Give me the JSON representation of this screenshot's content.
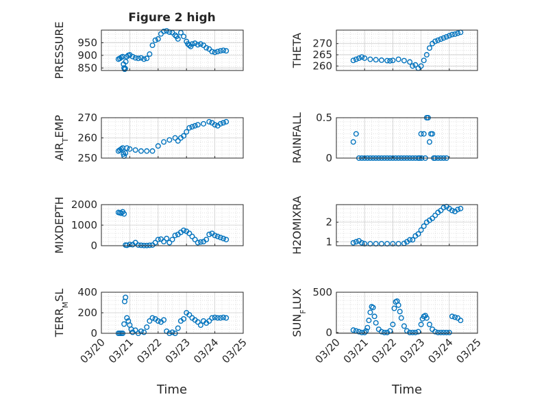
{
  "chart_data": {
    "type": "scatter",
    "title": "Figure 2 high",
    "xlabel": "Time",
    "x_ticks": [
      "03/20",
      "03/21",
      "03/22",
      "03/23",
      "03/24",
      "03/25"
    ],
    "x_range_days": [
      0,
      5
    ],
    "marker": "open-circle",
    "marker_color": "#0072bd",
    "grid": "major+minor",
    "panels": [
      {
        "ylabel": "PRESSURE",
        "ylim": [
          840,
          1000
        ],
        "yticks": [
          850,
          900,
          950
        ],
        "x": [
          0.6,
          0.65,
          0.7,
          0.75,
          0.78,
          0.8,
          0.82,
          0.84,
          0.86,
          0.9,
          0.95,
          1.0,
          1.1,
          1.2,
          1.3,
          1.4,
          1.5,
          1.6,
          1.7,
          1.8,
          1.9,
          2.0,
          2.1,
          2.2,
          2.3,
          2.4,
          2.5,
          2.6,
          2.65,
          2.7,
          2.8,
          2.9,
          3.0,
          3.05,
          3.1,
          3.15,
          3.2,
          3.3,
          3.4,
          3.5,
          3.6,
          3.7,
          3.8,
          3.9,
          4.0,
          4.1,
          4.2,
          4.3,
          4.4
        ],
        "y": [
          885,
          888,
          892,
          895,
          865,
          850,
          845,
          848,
          875,
          895,
          900,
          902,
          895,
          890,
          888,
          890,
          885,
          888,
          905,
          940,
          960,
          965,
          985,
          995,
          997,
          992,
          990,
          980,
          975,
          965,
          990,
          975,
          955,
          945,
          940,
          935,
          945,
          948,
          942,
          945,
          940,
          930,
          925,
          915,
          912,
          915,
          918,
          920,
          918
        ]
      },
      {
        "ylabel": "THETA",
        "ylim": [
          258,
          276
        ],
        "yticks": [
          260,
          265,
          270
        ],
        "x": [
          0.6,
          0.7,
          0.8,
          0.9,
          1.0,
          1.2,
          1.4,
          1.6,
          1.8,
          1.9,
          2.0,
          2.2,
          2.4,
          2.6,
          2.7,
          2.8,
          2.9,
          3.0,
          3.1,
          3.2,
          3.3,
          3.4,
          3.5,
          3.6,
          3.7,
          3.8,
          3.9,
          4.0,
          4.1,
          4.2,
          4.3,
          4.4
        ],
        "y": [
          262.5,
          263,
          263.5,
          264,
          263.5,
          263,
          262.8,
          262.6,
          262.4,
          262.3,
          262.5,
          263,
          262.4,
          261.8,
          260,
          260.5,
          259,
          260,
          262.5,
          265,
          268,
          270,
          271,
          271.5,
          272,
          272.5,
          273,
          273.5,
          274,
          274.2,
          274.6,
          275
        ]
      },
      {
        "ylabel": "AIR_TEMP",
        "ylim": [
          250,
          270
        ],
        "yticks": [
          250,
          260,
          270
        ],
        "x": [
          0.6,
          0.65,
          0.7,
          0.75,
          0.78,
          0.8,
          0.85,
          0.9,
          1.0,
          1.2,
          1.4,
          1.6,
          1.8,
          2.0,
          2.2,
          2.4,
          2.6,
          2.7,
          2.8,
          2.9,
          3.0,
          3.1,
          3.2,
          3.3,
          3.4,
          3.6,
          3.8,
          3.9,
          4.0,
          4.1,
          4.2,
          4.3,
          4.4
        ],
        "y": [
          253.5,
          254,
          254.5,
          255,
          252,
          251,
          252.5,
          255,
          254.5,
          254,
          253.5,
          253.5,
          253.5,
          256,
          258,
          259,
          260,
          258.5,
          260,
          261,
          263,
          265,
          265.5,
          266,
          266.5,
          267,
          268,
          267.5,
          266.5,
          266,
          267,
          267.5,
          268
        ]
      },
      {
        "ylabel": "RAINFALL",
        "ylim": [
          0,
          0.5
        ],
        "yticks": [
          0,
          0.5
        ],
        "x": [
          0.6,
          0.7,
          0.8,
          0.9,
          1.0,
          1.1,
          1.2,
          1.3,
          1.4,
          1.5,
          1.6,
          1.7,
          1.8,
          1.9,
          2.0,
          2.1,
          2.2,
          2.3,
          2.4,
          2.5,
          2.6,
          2.7,
          2.8,
          2.9,
          2.95,
          3.0,
          3.02,
          3.1,
          3.15,
          3.2,
          3.25,
          3.3,
          3.35,
          3.4,
          3.45,
          3.5,
          3.6,
          3.7,
          3.8,
          3.9
        ],
        "y": [
          0.2,
          0.3,
          0,
          0,
          0,
          0,
          0,
          0,
          0,
          0,
          0,
          0,
          0,
          0,
          0,
          0,
          0,
          0,
          0,
          0,
          0,
          0,
          0,
          0,
          0,
          0.3,
          0,
          0.3,
          0,
          0.5,
          0.5,
          0.2,
          0.3,
          0.3,
          0,
          0,
          0,
          0,
          0,
          0
        ]
      },
      {
        "ylabel": "MIXDEPTH",
        "ylim": [
          0,
          2000
        ],
        "yticks": [
          0,
          1000,
          2000
        ],
        "x": [
          0.6,
          0.65,
          0.7,
          0.75,
          0.8,
          0.85,
          0.9,
          1.0,
          1.1,
          1.2,
          1.3,
          1.4,
          1.5,
          1.6,
          1.7,
          1.8,
          1.9,
          2.0,
          2.1,
          2.2,
          2.3,
          2.4,
          2.5,
          2.6,
          2.7,
          2.8,
          2.9,
          3.0,
          3.1,
          3.2,
          3.3,
          3.4,
          3.5,
          3.6,
          3.7,
          3.8,
          3.9,
          4.0,
          4.1,
          4.2,
          4.3,
          4.4
        ],
        "y": [
          1620,
          1600,
          1580,
          1650,
          1550,
          30,
          20,
          60,
          50,
          150,
          30,
          20,
          10,
          10,
          20,
          30,
          150,
          300,
          320,
          200,
          350,
          150,
          300,
          500,
          550,
          650,
          750,
          700,
          600,
          450,
          300,
          150,
          180,
          200,
          300,
          550,
          600,
          500,
          450,
          400,
          350,
          300
        ]
      },
      {
        "ylabel": "H2OMIXRA",
        "ylim": [
          0.8,
          2.9
        ],
        "yticks": [
          1,
          2
        ],
        "x": [
          0.6,
          0.7,
          0.8,
          0.9,
          1.0,
          1.2,
          1.4,
          1.6,
          1.8,
          2.0,
          2.2,
          2.4,
          2.5,
          2.6,
          2.7,
          2.8,
          2.9,
          3.0,
          3.1,
          3.2,
          3.3,
          3.4,
          3.5,
          3.6,
          3.7,
          3.8,
          3.9,
          4.0,
          4.1,
          4.2,
          4.3,
          4.4
        ],
        "y": [
          0.95,
          1.0,
          1.05,
          0.95,
          0.9,
          0.9,
          0.9,
          0.9,
          0.9,
          0.9,
          0.9,
          0.92,
          1.0,
          1.1,
          1.1,
          1.3,
          1.4,
          1.6,
          1.8,
          2.0,
          2.1,
          2.2,
          2.35,
          2.5,
          2.6,
          2.75,
          2.8,
          2.7,
          2.6,
          2.55,
          2.65,
          2.7
        ]
      },
      {
        "ylabel": "TERR_MSL",
        "ylim": [
          0,
          400
        ],
        "yticks": [
          0,
          200,
          400
        ],
        "x": [
          0.6,
          0.65,
          0.7,
          0.75,
          0.8,
          0.82,
          0.85,
          0.9,
          0.95,
          1.0,
          1.05,
          1.1,
          1.2,
          1.3,
          1.4,
          1.5,
          1.6,
          1.7,
          1.8,
          1.9,
          2.0,
          2.1,
          2.2,
          2.3,
          2.4,
          2.5,
          2.6,
          2.7,
          2.8,
          2.9,
          3.0,
          3.1,
          3.2,
          3.3,
          3.4,
          3.5,
          3.6,
          3.7,
          3.8,
          3.9,
          4.0,
          4.1,
          4.2,
          4.3,
          4.4
        ],
        "y": [
          0,
          0,
          0,
          0,
          90,
          310,
          350,
          150,
          120,
          80,
          40,
          10,
          30,
          0,
          20,
          10,
          60,
          120,
          150,
          140,
          120,
          110,
          130,
          20,
          0,
          10,
          0,
          50,
          120,
          140,
          200,
          180,
          150,
          130,
          110,
          80,
          120,
          100,
          120,
          150,
          155,
          150,
          150,
          155,
          150
        ]
      },
      {
        "ylabel": "SUN_FLUX",
        "ylim": [
          -10,
          500
        ],
        "yticks": [
          0,
          500
        ],
        "x": [
          0.6,
          0.7,
          0.8,
          0.9,
          1.0,
          1.05,
          1.1,
          1.15,
          1.2,
          1.25,
          1.3,
          1.35,
          1.4,
          1.5,
          1.6,
          1.7,
          1.8,
          1.9,
          2.0,
          2.05,
          2.1,
          2.15,
          2.2,
          2.25,
          2.3,
          2.4,
          2.5,
          2.6,
          2.7,
          2.8,
          2.9,
          3.0,
          3.05,
          3.1,
          3.15,
          3.2,
          3.3,
          3.4,
          3.5,
          3.6,
          3.7,
          3.8,
          3.9,
          4.0,
          4.1,
          4.2,
          4.3,
          4.4
        ],
        "y": [
          30,
          20,
          10,
          0,
          0,
          20,
          60,
          150,
          250,
          320,
          310,
          200,
          120,
          40,
          10,
          0,
          0,
          20,
          100,
          300,
          380,
          390,
          340,
          260,
          180,
          80,
          20,
          0,
          0,
          0,
          10,
          100,
          170,
          200,
          210,
          180,
          100,
          40,
          10,
          0,
          0,
          0,
          0,
          0,
          200,
          190,
          180,
          150
        ]
      }
    ]
  }
}
